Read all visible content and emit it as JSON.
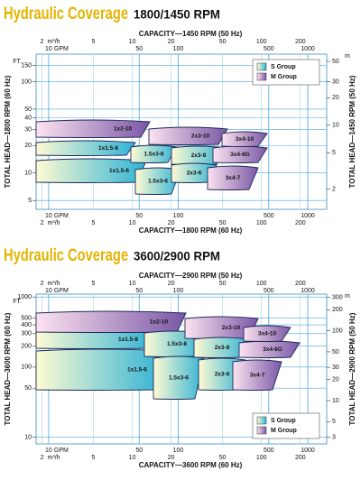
{
  "chart_data": [
    {
      "type": "coverage",
      "title": "Hydraulic Coverage",
      "subtitle": "1800/1450 RPM",
      "x_top_label": "CAPACITY—1450 RPM (50 Hz)",
      "x_bottom_label": "CAPACITY—1800 RPM (60 Hz)",
      "y_label": "TOTAL HEAD—1800 RPM (60 Hz)",
      "y2_label": "TOTAL HEAD—1450 RPM (50 Hz)",
      "y_unit": "FT.",
      "y2_unit": "m",
      "gpm_unit": "GPM",
      "m3h_unit": "m³/h",
      "xlim": [
        8,
        1400
      ],
      "xticks": [
        10,
        50,
        100,
        500,
        1000
      ],
      "x2lim": [
        1.8,
        320
      ],
      "x2ticks": [
        2,
        5,
        10,
        20,
        50,
        100,
        200
      ],
      "ylim": [
        4,
        200
      ],
      "yticks": [
        5,
        10,
        20,
        30,
        40,
        50,
        100,
        150
      ],
      "y2lim": [
        1.2,
        60
      ],
      "y2ticks": [
        2,
        5,
        10,
        20,
        30,
        50
      ],
      "log": true,
      "grid": true,
      "legend": "upper right",
      "series": [
        {
          "name": "S Group",
          "color": "#2fb2d6",
          "color2": "#fffbd2",
          "regions": [
            "1x1.5-8",
            "1x1.5-6",
            "1.5x3-8",
            "1.5x3-6",
            "2x3-8",
            "2x3-6"
          ]
        },
        {
          "name": "M Group",
          "color": "#7a57a6",
          "color2": "#fde3f0",
          "regions": [
            "1x2-10",
            "2x3-10",
            "3x4-10",
            "3x4-8G",
            "3x4-7"
          ]
        }
      ]
    },
    {
      "type": "coverage",
      "title": "Hydraulic Coverage",
      "subtitle": "3600/2900 RPM",
      "x_top_label": "CAPACITY—2900 RPM (50 Hz)",
      "x_bottom_label": "CAPACITY—3600 RPM (60 Hz)",
      "y_label": "TOTAL HEAD—3600 RPM (60 Hz)",
      "y2_label": "TOTAL HEAD—2900 RPM (50 Hz)",
      "y_unit": "FT.",
      "y2_unit": "m",
      "gpm_unit": "GPM",
      "m3h_unit": "m³/h",
      "xlim": [
        8,
        1400
      ],
      "xticks": [
        10,
        50,
        100,
        500,
        1000
      ],
      "x2lim": [
        1.8,
        320
      ],
      "x2ticks": [
        2,
        5,
        10,
        20,
        50,
        100,
        200
      ],
      "ylim": [
        8,
        1100
      ],
      "yticks": [
        10,
        50,
        100,
        200,
        300,
        400,
        500,
        1000
      ],
      "y2lim": [
        2.4,
        335
      ],
      "y2ticks": [
        3,
        5,
        10,
        20,
        30,
        50,
        100,
        200,
        300
      ],
      "log": true,
      "grid": true,
      "legend": "lower right",
      "series": [
        {
          "name": "S Group",
          "color": "#2fb2d6",
          "color2": "#fffbd2",
          "regions": [
            "1x1.5-8",
            "1x1.5-6",
            "1.5x3-8",
            "1.5x3-6",
            "2x3-8",
            "2x3-6"
          ]
        },
        {
          "name": "M Group",
          "color": "#7a57a6",
          "color2": "#fde3f0",
          "regions": [
            "1x2-10",
            "2x3-10",
            "3x4-10",
            "3x4-8G",
            "3x4-7"
          ]
        }
      ]
    }
  ]
}
